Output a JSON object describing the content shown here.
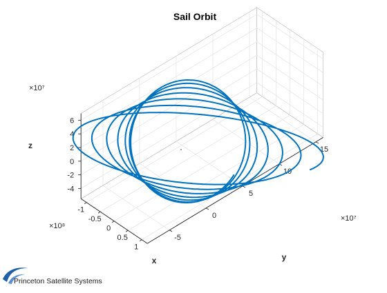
{
  "chart_data": {
    "type": "line",
    "title": "Sail Orbit",
    "xlabel": "x",
    "ylabel": "y",
    "zlabel": "z",
    "x_exponent": "×10⁸",
    "y_exponent": "×10⁷",
    "z_exponent": "×10⁷",
    "x_ticks": [
      "-1",
      "-0.5",
      "0",
      "0.5",
      "1"
    ],
    "y_ticks": [
      "-5",
      "0",
      "5",
      "10",
      "15"
    ],
    "z_ticks": [
      "6",
      "4",
      "2",
      "0",
      "-2",
      "-4"
    ],
    "xlim": [
      -1.2,
      1.2
    ],
    "ylim": [
      -8,
      16
    ],
    "zlim": [
      -5.5,
      7
    ],
    "grid": true,
    "series_color": "#0072BD",
    "trajectory": {
      "description_units": "x in 1e8, y in 1e7, z in 1e7",
      "turns": 7,
      "start_radius_x": 0.58,
      "end_radius_x": 1.18,
      "inclination": "tilted loops around origin"
    }
  },
  "logo": {
    "name": "Princeton Satellite Systems",
    "icon": "swoosh-logo-icon",
    "color": "#1f5fa6"
  }
}
